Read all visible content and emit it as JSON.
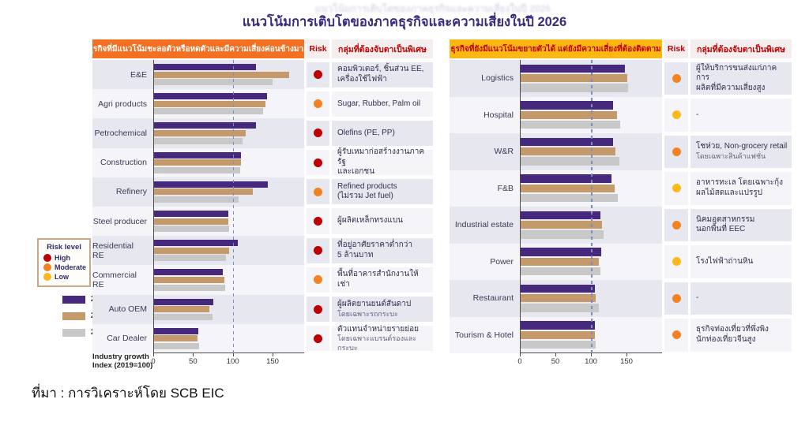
{
  "title": "แนวโน้มการเติบโตของภาคธุรกิจและความเสี่ยงในปี 2026",
  "source": "ที่มา : การวิเคราะห์โดย SCB EIC",
  "axis": {
    "label": "Industry growth\nIndex (2019=100)",
    "ticks": [
      0,
      50,
      100,
      150
    ]
  },
  "risk_legend": {
    "title": "Risk level",
    "items": [
      {
        "label": "High",
        "level": "high"
      },
      {
        "label": "Moderate",
        "level": "moderate"
      },
      {
        "label": "Low",
        "level": "low"
      }
    ]
  },
  "series_legend": [
    {
      "label": "2024"
    },
    {
      "label": "2025E"
    },
    {
      "label": "2026F"
    }
  ],
  "colors": {
    "series": {
      "2024": "#46287c",
      "2025E": "#c49a6b",
      "2026F": "#c8c8c8"
    },
    "risk": {
      "high": "#c00000",
      "moderate": "#f58220",
      "low": "#fdb81e"
    },
    "accent_orange": "#f36f21",
    "accent_yellow": "#fdb713",
    "header_text_red": "#c00000",
    "title_color": "#3b2a7e",
    "stripe_dark": "#e7e7f0",
    "stripe_light": "#f4f4f9",
    "reference_line": "#7d8bbf"
  },
  "chart_data": [
    {
      "type": "bar",
      "orientation": "horizontal",
      "panel_title": "ธุรกิจที่มีแนวโน้มชะลอตัวหรือหดตัวและมีความเสี่ยงค่อนข้างมาก",
      "risk_header": "Risk",
      "note_header": "กลุ่มที่ต้องจับตาเป็นพิเศษ",
      "categories": [
        "E&E",
        "Agri products",
        "Petrochemical",
        "Construction",
        "Refinery",
        "Steel producer",
        "Residential RE",
        "Commercial RE",
        "Auto OEM",
        "Car Dealer"
      ],
      "series": [
        {
          "name": "2024",
          "values": [
            128,
            142,
            128,
            109,
            143,
            93,
            105,
            86,
            74,
            56
          ]
        },
        {
          "name": "2025E",
          "values": [
            170,
            140,
            115,
            109,
            124,
            93,
            94,
            88,
            70,
            55
          ]
        },
        {
          "name": "2026F",
          "values": [
            149,
            137,
            111,
            108,
            106,
            94,
            90,
            89,
            73,
            57
          ]
        }
      ],
      "risk": [
        "high",
        "moderate",
        "high",
        "high",
        "moderate",
        "high",
        "high",
        "moderate",
        "high",
        "high"
      ],
      "notes": [
        {
          "text": "คอมพิวเตอร์, ชิ้นส่วน EE,\nเครื่องใช้ไฟฟ้า",
          "sub": ""
        },
        {
          "text": "Sugar, Rubber, Palm oil",
          "sub": ""
        },
        {
          "text": "Olefins (PE, PP)",
          "sub": ""
        },
        {
          "text": "ผู้รับเหมาก่อสร้างงานภาครัฐ\nและเอกชน",
          "sub": ""
        },
        {
          "text": "Refined products\n(ไม่รวม Jet fuel)",
          "sub": ""
        },
        {
          "text": "ผู้ผลิตเหล็กทรงแบน",
          "sub": ""
        },
        {
          "text": "ที่อยู่อาศัยราคาต่ำกว่า\n5 ล้านบาท",
          "sub": ""
        },
        {
          "text": "พื้นที่อาคารสำนักงานให้เช่า",
          "sub": ""
        },
        {
          "text": "ผู้ผลิตยานยนต์สันดาป",
          "sub": "โดยเฉพาะรถกระบะ"
        },
        {
          "text": "ตัวแทนจำหน่ายรายย่อย",
          "sub": "โดยเฉพาะแบรนด์รองและกระบะ"
        }
      ],
      "xlabel": "Industry growth Index (2019=100)",
      "xlim": [
        0,
        190
      ],
      "xticks": [
        0,
        50,
        100,
        150
      ],
      "reference_line": 100,
      "legend_position": "left-outside",
      "grid": false
    },
    {
      "type": "bar",
      "orientation": "horizontal",
      "panel_title": "ธุรกิจที่ยังมีแนวโน้มขยายตัวได้ แต่ยังมีความเสี่ยงที่ต้องติดตาม",
      "risk_header": "Risk",
      "note_header": "กลุ่มที่ต้องจับตาเป็นพิเศษ",
      "categories": [
        "Logistics",
        "Hospital",
        "W&R",
        "F&B",
        "Industrial estate",
        "Power",
        "Restaurant",
        "Tourism & Hotel"
      ],
      "series": [
        {
          "name": "2024",
          "values": [
            147,
            130,
            130,
            128,
            112,
            113,
            104,
            104
          ]
        },
        {
          "name": "2025E",
          "values": [
            150,
            135,
            133,
            132,
            114,
            110,
            106,
            104
          ]
        },
        {
          "name": "2026F",
          "values": [
            151,
            140,
            139,
            137,
            117,
            112,
            110,
            106
          ]
        }
      ],
      "risk": [
        "moderate",
        "low",
        "moderate",
        "low",
        "moderate",
        "low",
        "moderate",
        "moderate"
      ],
      "notes": [
        {
          "text": "ผู้ให้บริการขนส่งแก่ภาคการ\nผลิตที่มีความเสี่ยงสูง",
          "sub": ""
        },
        {
          "text": "-",
          "sub": ""
        },
        {
          "text": "โชห่วย, Non-grocery retail",
          "sub": "โดยเฉพาะสินค้าแฟชั่น"
        },
        {
          "text": "อาหารทะเล โดยเฉพาะกุ้ง\nผลไม้สดและแปรรูป",
          "sub": ""
        },
        {
          "text": "นิคมอุตสาหกรรม\nนอกพื้นที่ EEC",
          "sub": ""
        },
        {
          "text": "โรงไฟฟ้าถ่านหิน",
          "sub": ""
        },
        {
          "text": "-",
          "sub": ""
        },
        {
          "text": "ธุรกิจท่องเที่ยวที่พึ่งพิง\nนักท่องเที่ยวจีนสูง",
          "sub": ""
        }
      ],
      "xlabel": "Industry growth Index (2019=100)",
      "xlim": [
        0,
        200
      ],
      "xticks": [
        0,
        50,
        100,
        150
      ],
      "reference_line": 100,
      "grid": false
    }
  ]
}
